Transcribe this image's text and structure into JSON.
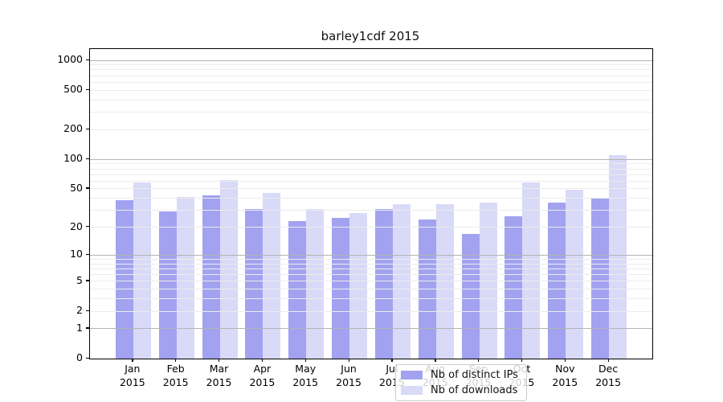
{
  "title": "barley1cdf 2015",
  "chart_data": {
    "type": "bar",
    "title": "barley1cdf 2015",
    "categories": [
      "Jan",
      "Feb",
      "Mar",
      "Apr",
      "May",
      "Jun",
      "Jul",
      "Aug",
      "Sep",
      "Oct",
      "Nov",
      "Dec"
    ],
    "year_label": "2015",
    "series": [
      {
        "name": "Nb of distinct IPs",
        "color": "#a2a2f0",
        "values": [
          38,
          29,
          43,
          31,
          23,
          25,
          31,
          24,
          17,
          26,
          36,
          40
        ]
      },
      {
        "name": "Nb of downloads",
        "color": "#d9d9f8",
        "values": [
          58,
          41,
          62,
          45,
          31,
          28,
          35,
          35,
          36,
          58,
          49,
          110
        ]
      }
    ],
    "xlabel": "",
    "ylabel": "",
    "y_axis": {
      "scale": "log10(1+x)",
      "tick_values": [
        0,
        1,
        2,
        5,
        10,
        20,
        50,
        100,
        200,
        500,
        1000
      ],
      "tick_labels": [
        "0",
        "1",
        "2",
        "5",
        "10",
        "20",
        "50",
        "100",
        "200",
        "500",
        "1000"
      ],
      "major_gridlines": [
        1,
        10,
        100,
        1000
      ],
      "minor_gridlines": [
        2,
        3,
        4,
        5,
        6,
        7,
        8,
        9,
        20,
        30,
        40,
        50,
        60,
        70,
        80,
        90,
        200,
        300,
        400,
        500,
        600,
        700,
        800,
        900
      ],
      "ylim": [
        0,
        1300
      ]
    },
    "grid": true,
    "legend_position": "lower center"
  },
  "legend": {
    "entries": [
      "Nb of distinct IPs",
      "Nb of downloads"
    ]
  }
}
